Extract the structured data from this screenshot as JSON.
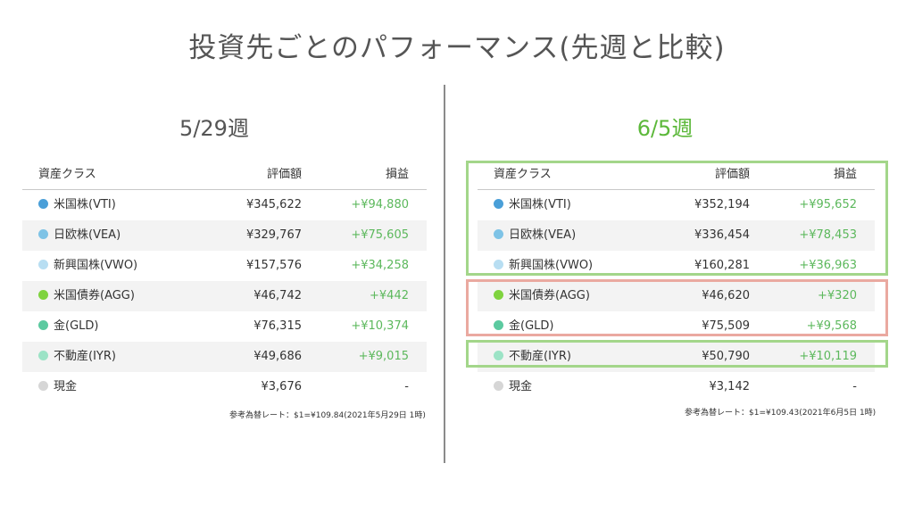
{
  "title": "投資先ごとのパフォーマンス(先週と比較)",
  "left": {
    "week": "5/29週",
    "headers": {
      "asset": "資産クラス",
      "value": "評価額",
      "gain": "損益"
    },
    "rows": [
      {
        "name": "米国株(VTI)",
        "value": "¥345,622",
        "gain": "+¥94,880",
        "color": "#4a9fd8"
      },
      {
        "name": "日欧株(VEA)",
        "value": "¥329,767",
        "gain": "+¥75,605",
        "color": "#7ec3e6"
      },
      {
        "name": "新興国株(VWO)",
        "value": "¥157,576",
        "gain": "+¥34,258",
        "color": "#b8def2"
      },
      {
        "name": "米国債券(AGG)",
        "value": "¥46,742",
        "gain": "+¥442",
        "color": "#7fd33f"
      },
      {
        "name": "金(GLD)",
        "value": "¥76,315",
        "gain": "+¥10,374",
        "color": "#5ccaa0"
      },
      {
        "name": "不動産(IYR)",
        "value": "¥49,686",
        "gain": "+¥9,015",
        "color": "#9ce3c6"
      },
      {
        "name": "現金",
        "value": "¥3,676",
        "gain": "-",
        "color": "#d6d6d6"
      }
    ],
    "footnote": "参考為替レート：$1=¥109.84(2021年5月29日 1時)"
  },
  "right": {
    "week": "6/5週",
    "headers": {
      "asset": "資産クラス",
      "value": "評価額",
      "gain": "損益"
    },
    "rows": [
      {
        "name": "米国株(VTI)",
        "value": "¥352,194",
        "gain": "+¥95,652",
        "color": "#4a9fd8"
      },
      {
        "name": "日欧株(VEA)",
        "value": "¥336,454",
        "gain": "+¥78,453",
        "color": "#7ec3e6"
      },
      {
        "name": "新興国株(VWO)",
        "value": "¥160,281",
        "gain": "+¥36,963",
        "color": "#b8def2"
      },
      {
        "name": "米国債券(AGG)",
        "value": "¥46,620",
        "gain": "+¥320",
        "color": "#7fd33f"
      },
      {
        "name": "金(GLD)",
        "value": "¥75,509",
        "gain": "+¥9,568",
        "color": "#5ccaa0"
      },
      {
        "name": "不動産(IYR)",
        "value": "¥50,790",
        "gain": "+¥10,119",
        "color": "#9ce3c6"
      },
      {
        "name": "現金",
        "value": "¥3,142",
        "gain": "-",
        "color": "#d6d6d6"
      }
    ],
    "footnote": "参考為替レート：$1=¥109.43(2021年6月5日 1時)"
  },
  "highlight_colors": {
    "up": "#a3d68a",
    "down": "#eaa9a0"
  }
}
